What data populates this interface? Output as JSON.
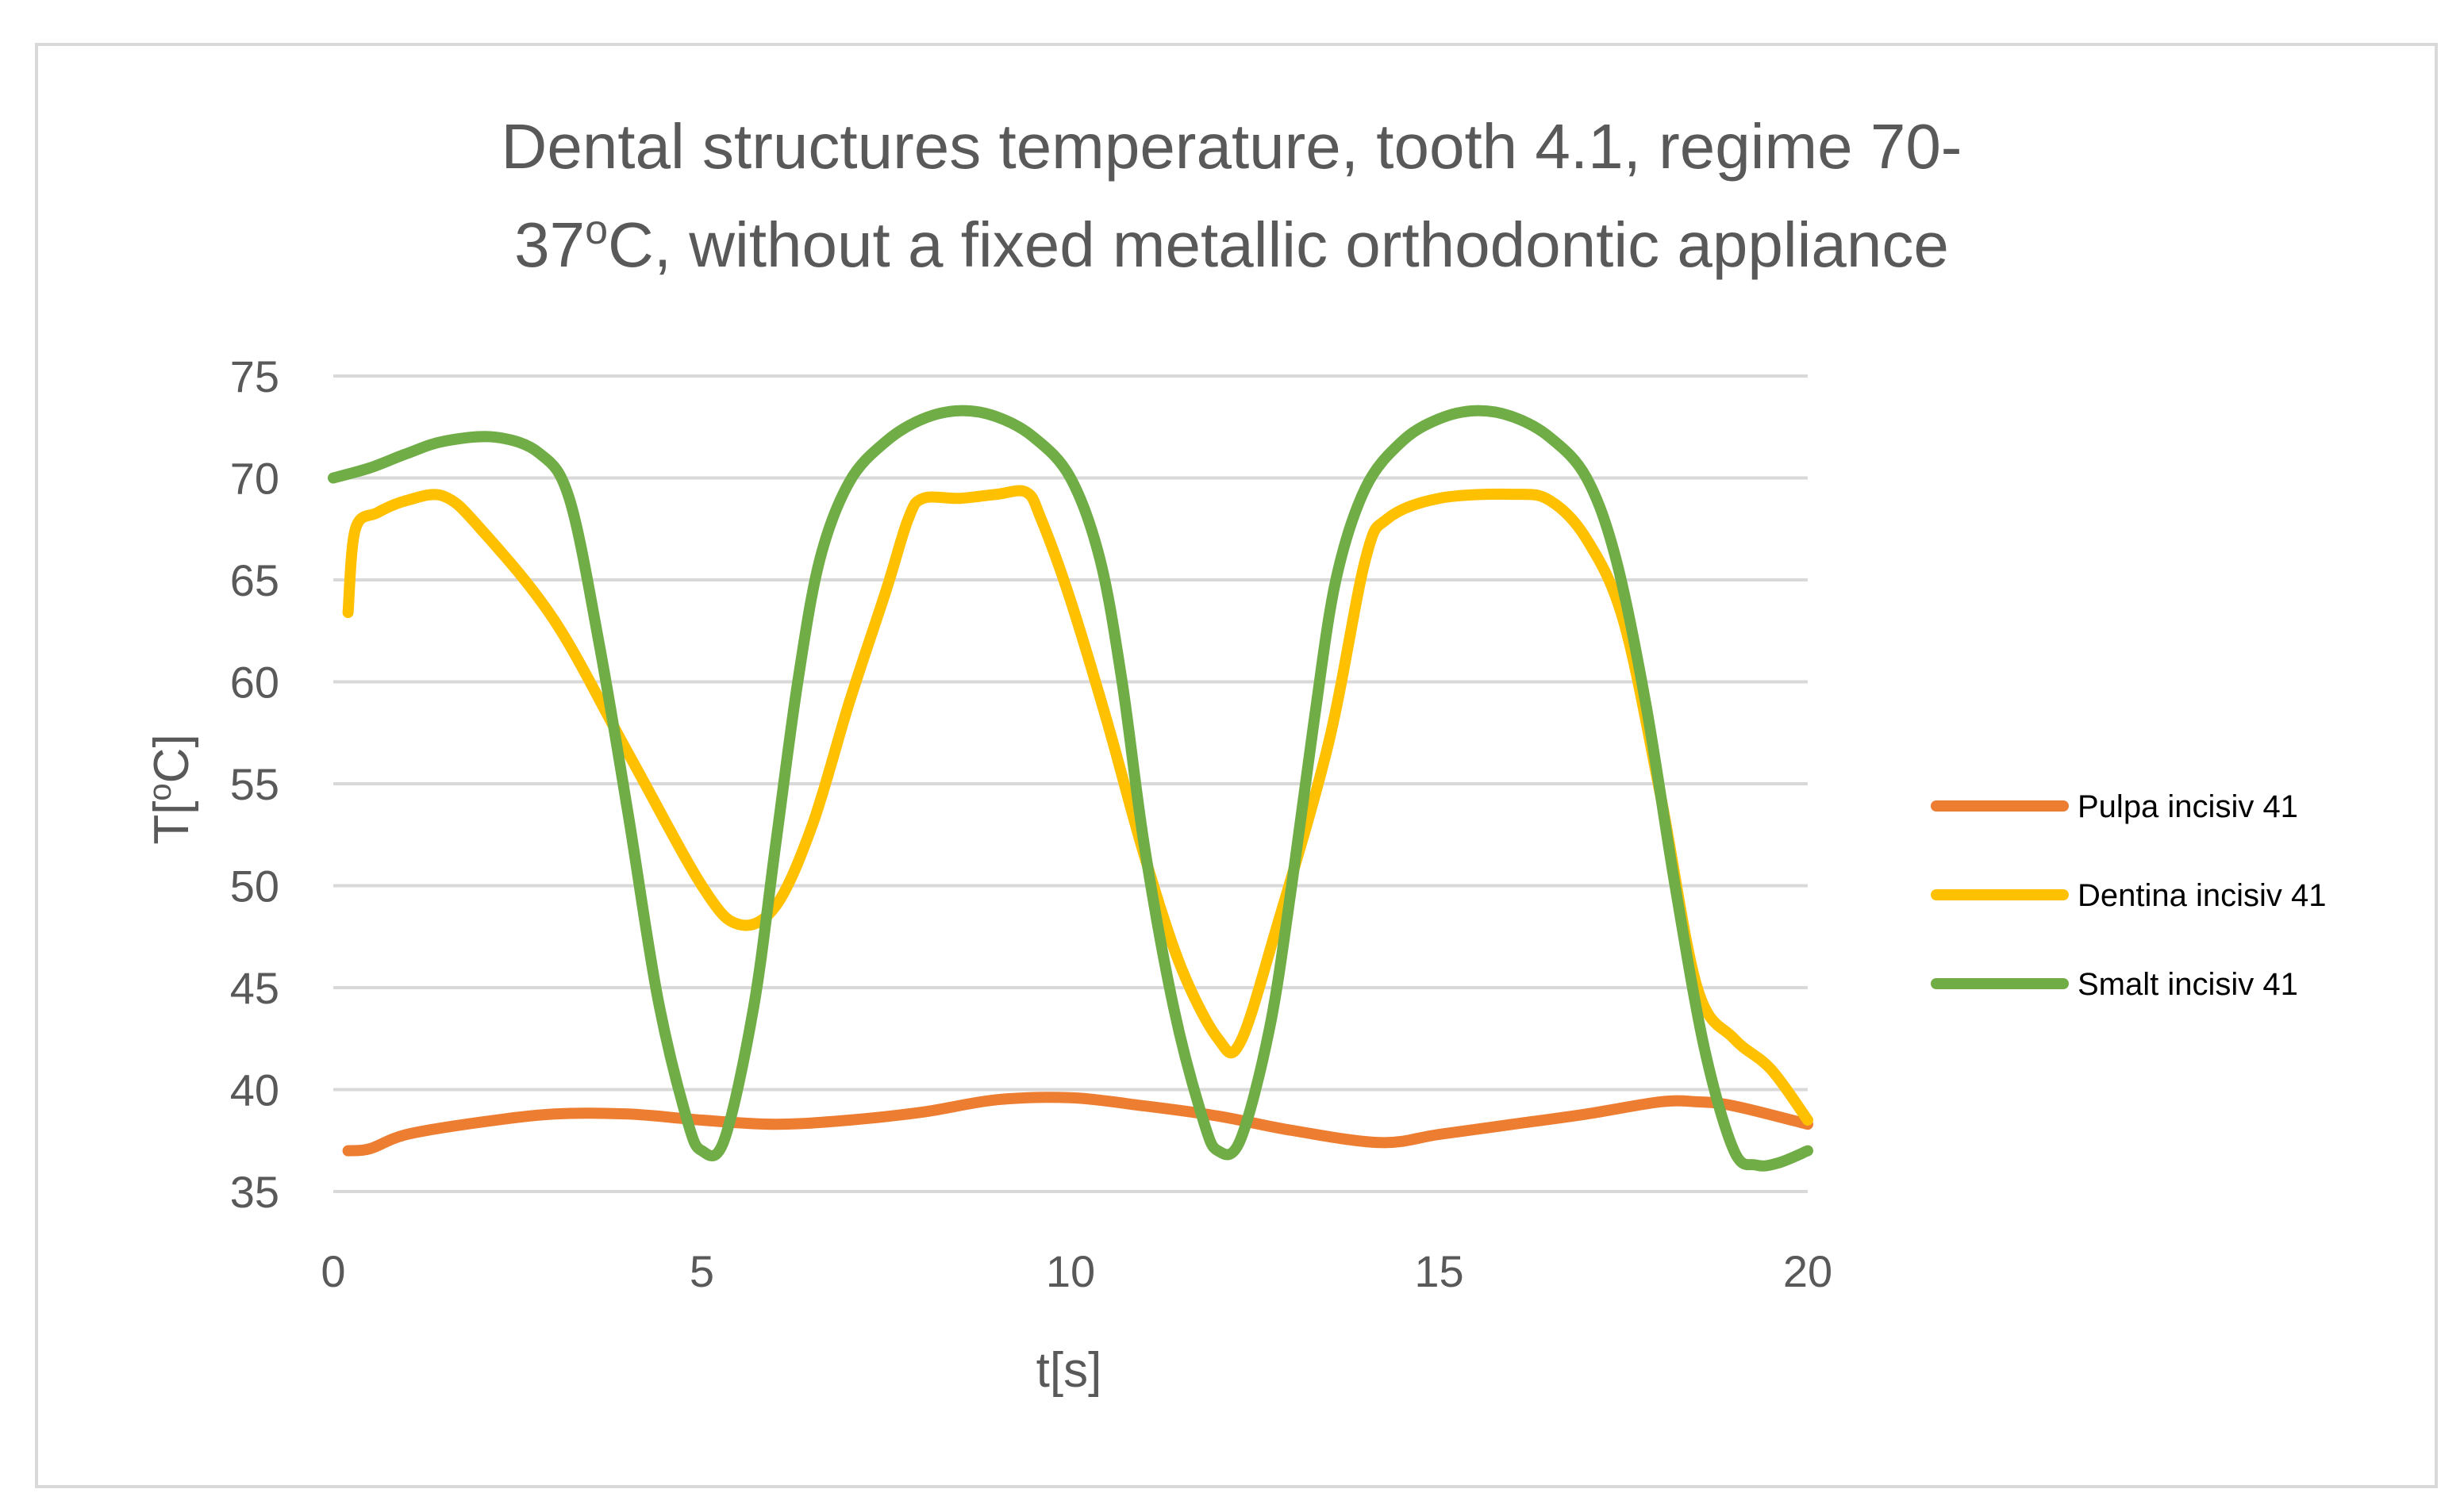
{
  "chart_data": {
    "type": "line",
    "title_line1": "Dental structures temperature, tooth 4.1, regime 70-",
    "title_line2_pre": "37",
    "title_line2_sup": "o",
    "title_line2_post": "C, without a fixed metallic orthodontic appliance",
    "xlabel": "t[s]",
    "ylabel_pre": "T[",
    "ylabel_sup": "o",
    "ylabel_post": "C]",
    "xlim": [
      0,
      20
    ],
    "ylim": [
      35,
      75
    ],
    "xticks": [
      0,
      5,
      10,
      15,
      20
    ],
    "yticks": [
      35,
      40,
      45,
      50,
      55,
      60,
      65,
      70,
      75
    ],
    "grid": "horizontal",
    "legend_position": "right",
    "series": [
      {
        "name": "Pulpa incisiv 41",
        "color": "#ed7d31",
        "points": [
          [
            0.2,
            37.0
          ],
          [
            0.5,
            37.1
          ],
          [
            1,
            37.8
          ],
          [
            2,
            38.4
          ],
          [
            3,
            38.8
          ],
          [
            4,
            38.8
          ],
          [
            5,
            38.5
          ],
          [
            6,
            38.3
          ],
          [
            7,
            38.5
          ],
          [
            8,
            38.9
          ],
          [
            9,
            39.5
          ],
          [
            10,
            39.6
          ],
          [
            11,
            39.2
          ],
          [
            12,
            38.7
          ],
          [
            13,
            38.0
          ],
          [
            14.2,
            37.4
          ],
          [
            15,
            37.8
          ],
          [
            16,
            38.3
          ],
          [
            17,
            38.8
          ],
          [
            18,
            39.4
          ],
          [
            18.5,
            39.4
          ],
          [
            19,
            39.2
          ],
          [
            20,
            38.3
          ]
        ]
      },
      {
        "name": "Dentina incisiv 41",
        "color": "#ffc000",
        "points": [
          [
            0.2,
            63.4
          ],
          [
            0.3,
            67.5
          ],
          [
            0.6,
            68.3
          ],
          [
            1.0,
            68.9
          ],
          [
            1.5,
            69.1
          ],
          [
            2.0,
            67.5
          ],
          [
            3.0,
            63.0
          ],
          [
            4.0,
            56.5
          ],
          [
            5.0,
            50.0
          ],
          [
            5.5,
            48.1
          ],
          [
            6.0,
            49.0
          ],
          [
            6.5,
            53.0
          ],
          [
            7.0,
            59.0
          ],
          [
            7.5,
            64.5
          ],
          [
            7.8,
            68.0
          ],
          [
            8.0,
            69.0
          ],
          [
            8.5,
            69.0
          ],
          [
            9.0,
            69.2
          ],
          [
            9.4,
            69.3
          ],
          [
            9.6,
            68.0
          ],
          [
            10.0,
            64.0
          ],
          [
            10.5,
            58.0
          ],
          [
            11.0,
            51.5
          ],
          [
            11.5,
            46.0
          ],
          [
            12.0,
            42.5
          ],
          [
            12.3,
            42.3
          ],
          [
            12.8,
            48.0
          ],
          [
            13.5,
            57.0
          ],
          [
            14.0,
            66.0
          ],
          [
            14.3,
            68.0
          ],
          [
            15.0,
            69.0
          ],
          [
            16.0,
            69.2
          ],
          [
            16.5,
            68.9
          ],
          [
            17.0,
            67.0
          ],
          [
            17.5,
            63.0
          ],
          [
            18.0,
            54.5
          ],
          [
            18.5,
            45.0
          ],
          [
            19.0,
            42.5
          ],
          [
            19.5,
            41.0
          ],
          [
            20.0,
            38.5
          ]
        ]
      },
      {
        "name": "Smalt incisiv 41",
        "color": "#70ad47",
        "points": [
          [
            0,
            70.0
          ],
          [
            0.5,
            70.5
          ],
          [
            1.0,
            71.2
          ],
          [
            1.5,
            71.8
          ],
          [
            2.2,
            72.0
          ],
          [
            2.8,
            71.2
          ],
          [
            3.2,
            69.0
          ],
          [
            3.6,
            62.0
          ],
          [
            4.0,
            53.5
          ],
          [
            4.4,
            44.5
          ],
          [
            4.8,
            38.5
          ],
          [
            5.0,
            37.0
          ],
          [
            5.3,
            37.5
          ],
          [
            5.7,
            44.0
          ],
          [
            6.0,
            52.0
          ],
          [
            6.3,
            60.0
          ],
          [
            6.6,
            66.0
          ],
          [
            7.0,
            69.8
          ],
          [
            7.5,
            71.8
          ],
          [
            8.0,
            72.9
          ],
          [
            8.5,
            73.3
          ],
          [
            9.0,
            73.0
          ],
          [
            9.5,
            72.0
          ],
          [
            10.0,
            70.0
          ],
          [
            10.4,
            66.0
          ],
          [
            10.7,
            60.0
          ],
          [
            11.0,
            52.0
          ],
          [
            11.4,
            44.0
          ],
          [
            11.8,
            38.5
          ],
          [
            12.0,
            37.0
          ],
          [
            12.3,
            37.5
          ],
          [
            12.7,
            43.0
          ],
          [
            13.0,
            50.0
          ],
          [
            13.3,
            58.0
          ],
          [
            13.6,
            65.0
          ],
          [
            14.0,
            69.5
          ],
          [
            14.5,
            71.8
          ],
          [
            15.0,
            72.9
          ],
          [
            15.5,
            73.3
          ],
          [
            16.0,
            73.0
          ],
          [
            16.5,
            72.0
          ],
          [
            17.0,
            70.0
          ],
          [
            17.4,
            66.0
          ],
          [
            17.8,
            59.0
          ],
          [
            18.2,
            50.0
          ],
          [
            18.6,
            42.0
          ],
          [
            19.0,
            37.0
          ],
          [
            19.3,
            36.3
          ],
          [
            19.6,
            36.4
          ],
          [
            20.0,
            37.0
          ]
        ]
      }
    ]
  }
}
